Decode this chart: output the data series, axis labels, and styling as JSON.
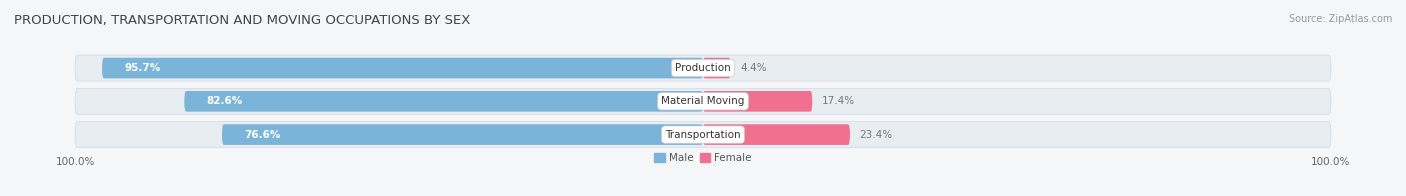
{
  "title": "PRODUCTION, TRANSPORTATION AND MOVING OCCUPATIONS BY SEX",
  "source": "Source: ZipAtlas.com",
  "categories": [
    "Production",
    "Material Moving",
    "Transportation"
  ],
  "male_values": [
    95.7,
    82.6,
    76.6
  ],
  "female_values": [
    4.4,
    17.4,
    23.4
  ],
  "male_color": "#7ab4d8",
  "female_color": "#f07090",
  "female_light_color": "#f8b8c8",
  "bg_row_color": "#e8edf2",
  "bg_color": "#f4f6f8",
  "title_fontsize": 9.5,
  "source_fontsize": 7,
  "label_fontsize": 7.5,
  "tick_fontsize": 7.5,
  "legend_fontsize": 7.5,
  "x_left_label": "100.0%",
  "x_right_label": "100.0%"
}
